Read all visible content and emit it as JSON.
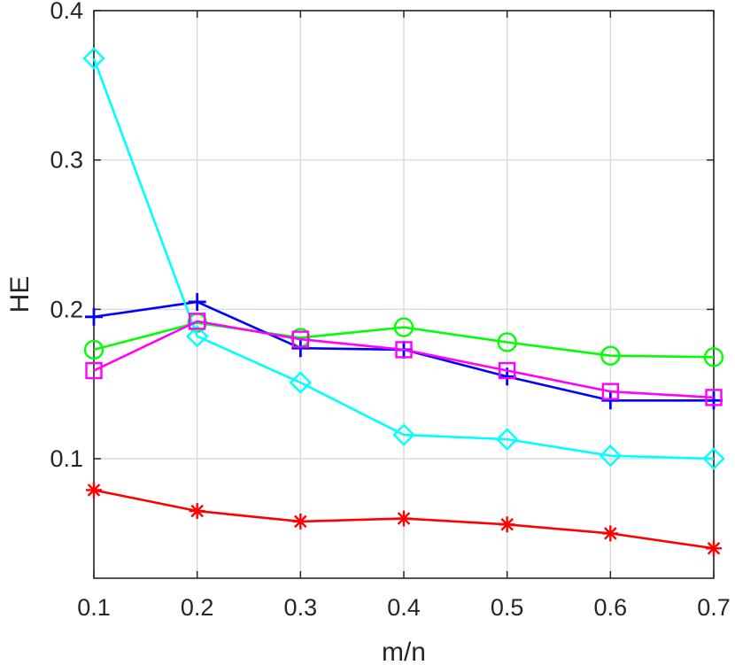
{
  "chart_data": {
    "type": "line",
    "title": "",
    "xlabel": "m/n",
    "ylabel": "HE",
    "xlim": [
      0.1,
      0.7
    ],
    "ylim": [
      0.02,
      0.4
    ],
    "x": [
      0.1,
      0.2,
      0.3,
      0.4,
      0.5,
      0.6,
      0.7
    ],
    "xticks": [
      0.1,
      0.2,
      0.3,
      0.4,
      0.5,
      0.6,
      0.7
    ],
    "xtick_labels": [
      "0.1",
      "0.2",
      "0.3",
      "0.4",
      "0.5",
      "0.6",
      "0.7"
    ],
    "yticks": [
      0.1,
      0.2,
      0.3,
      0.4
    ],
    "ytick_labels": [
      "0.1",
      "0.2",
      "0.3",
      "0.4"
    ],
    "grid": true,
    "legend": "none",
    "series": [
      {
        "color": "#ff0000",
        "marker": "asterisk",
        "values": [
          0.079,
          0.065,
          0.058,
          0.06,
          0.056,
          0.05,
          0.04
        ]
      },
      {
        "color": "#00ff00",
        "marker": "circle",
        "values": [
          0.173,
          0.191,
          0.181,
          0.188,
          0.178,
          0.169,
          0.168
        ]
      },
      {
        "color": "#0000ff",
        "marker": "plus",
        "values": [
          0.195,
          0.205,
          0.174,
          0.173,
          0.155,
          0.139,
          0.139
        ]
      },
      {
        "color": "#00ffff",
        "marker": "diamond",
        "values": [
          0.368,
          0.182,
          0.151,
          0.116,
          0.113,
          0.102,
          0.1
        ]
      },
      {
        "color": "#ff00ff",
        "marker": "square",
        "values": [
          0.159,
          0.192,
          0.18,
          0.173,
          0.159,
          0.145,
          0.141
        ]
      }
    ]
  }
}
